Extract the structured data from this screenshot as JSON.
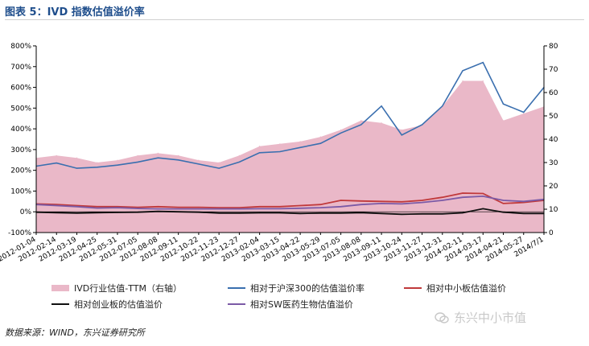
{
  "header": {
    "title": "图表 5：IVD 指数估值溢价率"
  },
  "source_note": "数据来源：WIND，东兴证券研究所",
  "watermark": {
    "text": "东兴中小市值",
    "icon": "wechat-icon"
  },
  "colors": {
    "ivd_pe": "#eab8c8",
    "hs300": "#3a6faf",
    "sme": "#c0393b",
    "chinext": "#111111",
    "sw_pharma": "#7b5aa6",
    "grid": "#000000"
  },
  "chart_data": {
    "type": "line",
    "title": "",
    "x": [
      "2012-01-04",
      "2012-02-14",
      "2012-03-19",
      "2012-04-25",
      "2012-05-31",
      "2012-07-05",
      "2012-08-08",
      "2012-09-11",
      "2012-10-22",
      "2012-11-23",
      "2012-12-27",
      "2013-02-04",
      "2013-03-15",
      "2013-04-22",
      "2013-05-29",
      "2013-07-05",
      "2013-08-08",
      "2013-09-11",
      "2013-10-24",
      "2013-11-27",
      "2013-12-31",
      "2014-02-11",
      "2014-03-17",
      "2014-04-21",
      "2014-05-27",
      "2014/7/1"
    ],
    "x_tick_labels": [
      "2012-01-04",
      "2012-02-14",
      "2012-03-19",
      "2012-04-25",
      "2012-05-31",
      "2012-07-05",
      "2012-08-08",
      "2012-09-11",
      "2012-10-22",
      "2012-11-23",
      "2012-12-27",
      "2013-02-04",
      "2013-03-15",
      "2013-04-22",
      "2013-05-29",
      "2013-07-05",
      "2013-08-08",
      "2013-09-11",
      "2013-10-24",
      "2013-11-27",
      "2013-12-31",
      "2014-02-11",
      "2014-03-17",
      "2014-04-21",
      "2014-05-27",
      "2014/7/1"
    ],
    "y_left": {
      "ylim": [
        -100,
        800
      ],
      "ticks": [
        "-100%",
        "0%",
        "100%",
        "200%",
        "300%",
        "400%",
        "500%",
        "600%",
        "700%",
        "800%"
      ]
    },
    "y_right": {
      "ylim": [
        0,
        80
      ],
      "ticks": [
        "0",
        "10",
        "20",
        "30",
        "40",
        "50",
        "60",
        "70",
        "80"
      ]
    },
    "grid": false,
    "legend_position": "bottom",
    "series": [
      {
        "name": "IVD行业估值-TTM（右轴）",
        "type": "area",
        "axis": "right",
        "values": [
          32,
          33,
          32,
          30,
          31,
          33,
          34,
          33,
          31,
          30,
          33,
          37,
          38,
          39,
          41,
          44,
          48,
          47,
          44,
          46,
          54,
          65,
          65,
          48,
          51,
          54
        ]
      },
      {
        "name": "相对于沪深300的估值溢价率",
        "type": "line",
        "axis": "left",
        "values": [
          220,
          235,
          210,
          215,
          225,
          240,
          260,
          250,
          230,
          210,
          240,
          285,
          290,
          310,
          330,
          380,
          420,
          510,
          370,
          420,
          510,
          680,
          720,
          520,
          480,
          600
        ]
      },
      {
        "name": "相对中小板估值溢价",
        "type": "line",
        "axis": "left",
        "values": [
          38,
          35,
          30,
          25,
          25,
          22,
          25,
          22,
          22,
          20,
          20,
          25,
          25,
          30,
          35,
          55,
          52,
          50,
          48,
          55,
          70,
          90,
          88,
          40,
          45,
          55
        ]
      },
      {
        "name": "相对创业板的估值溢价",
        "type": "line",
        "axis": "left",
        "values": [
          -2,
          -4,
          -6,
          -4,
          -3,
          -2,
          2,
          0,
          -2,
          -6,
          -6,
          -5,
          -5,
          -8,
          -6,
          -6,
          -4,
          -8,
          -12,
          -10,
          -10,
          -5,
          15,
          -2,
          -8,
          -8
        ]
      },
      {
        "name": "相对SW医药生物估值溢价",
        "type": "line",
        "axis": "left",
        "values": [
          35,
          30,
          25,
          18,
          20,
          16,
          14,
          14,
          14,
          14,
          14,
          15,
          15,
          17,
          20,
          25,
          35,
          40,
          38,
          45,
          55,
          70,
          75,
          55,
          50,
          60
        ]
      }
    ]
  }
}
